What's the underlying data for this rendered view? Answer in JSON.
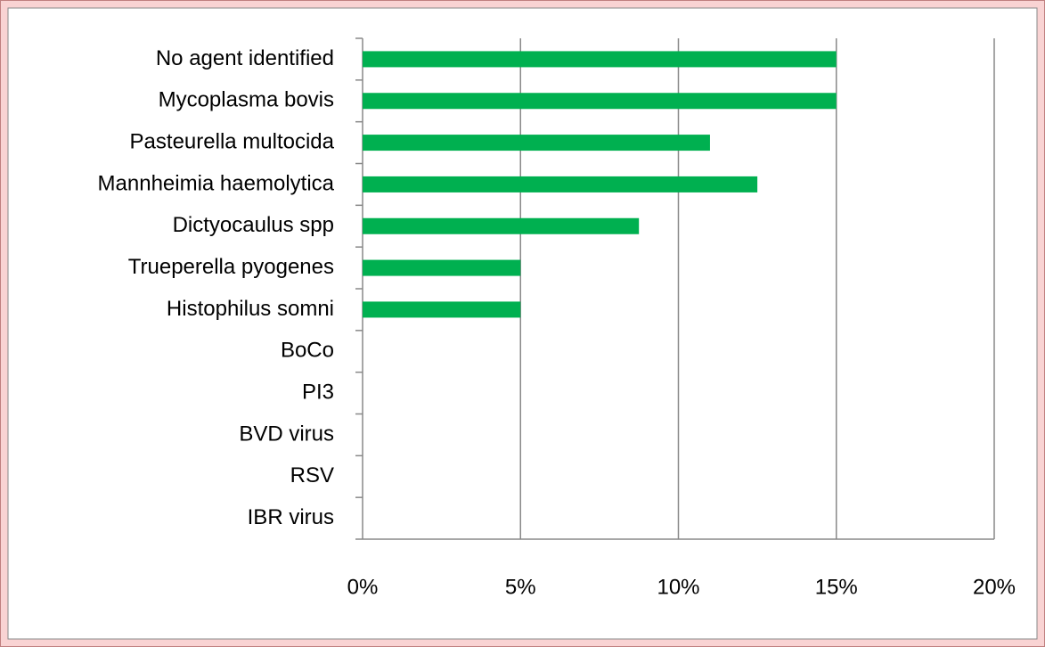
{
  "chart_data": {
    "type": "bar",
    "orientation": "horizontal",
    "categories": [
      "No agent identified",
      "Mycoplasma bovis",
      "Pasteurella multocida",
      "Mannheimia haemolytica",
      "Dictyocaulus spp",
      "Trueperella pyogenes",
      "Histophilus somni",
      "BoCo",
      "PI3",
      "BVD virus",
      "RSV",
      "IBR virus"
    ],
    "values": [
      15,
      15,
      11,
      12.5,
      8.75,
      5,
      5,
      0,
      0,
      0,
      0,
      0
    ],
    "color": "#00b050",
    "xlim": [
      0,
      20
    ],
    "xticks": [
      {
        "value": 0,
        "label": "0%"
      },
      {
        "value": 5,
        "label": "5%"
      },
      {
        "value": 10,
        "label": "10%"
      },
      {
        "value": 15,
        "label": "15%"
      },
      {
        "value": 20,
        "label": "20%"
      }
    ],
    "grid": true
  }
}
